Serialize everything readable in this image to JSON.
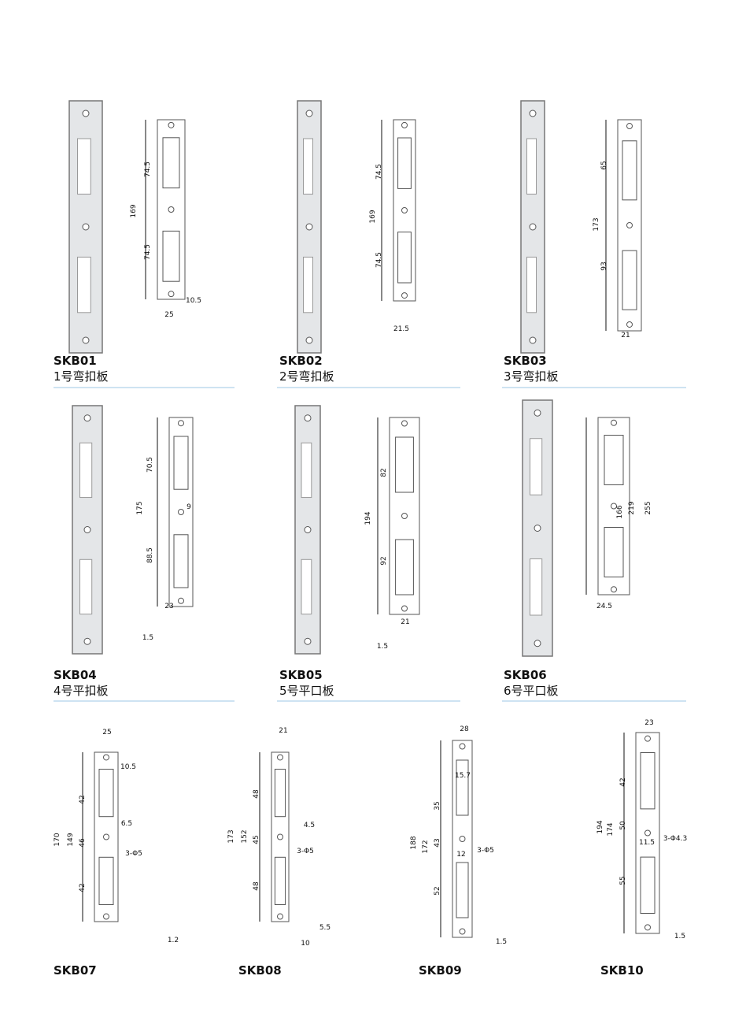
{
  "products": [
    {
      "code": "SKB01",
      "name": "1号弯扣板",
      "dims": [
        "74.5",
        "169",
        "74.5",
        "10.5",
        "25"
      ]
    },
    {
      "code": "SKB02",
      "name": "2号弯扣板",
      "dims": [
        "74.5",
        "169",
        "74.5",
        "21.5"
      ]
    },
    {
      "code": "SKB03",
      "name": "3号弯扣板",
      "dims": [
        "65",
        "173",
        "93",
        "21"
      ]
    },
    {
      "code": "SKB04",
      "name": "4号平扣板",
      "dims": [
        "70.5",
        "175",
        "9",
        "88.5",
        "23",
        "1.5"
      ]
    },
    {
      "code": "SKB05",
      "name": "5号平口板",
      "dims": [
        "82",
        "194",
        "92",
        "21",
        "1.5"
      ]
    },
    {
      "code": "SKB06",
      "name": "6号平口板",
      "dims": [
        "166",
        "219",
        "255",
        "24.5"
      ]
    },
    {
      "code": "SKB07",
      "dims": [
        "25",
        "10.5",
        "42",
        "149",
        "170",
        "6.5",
        "46",
        "3-Φ5",
        "42",
        "1.2"
      ]
    },
    {
      "code": "SKB08",
      "dims": [
        "21",
        "173",
        "152",
        "48",
        "4.5",
        "45",
        "3-Φ5",
        "48",
        "5.5",
        "10"
      ]
    },
    {
      "code": "SKB09",
      "dims": [
        "28",
        "15.7",
        "188",
        "172",
        "35",
        "43",
        "3-Φ5",
        "52",
        "12",
        "1.5"
      ]
    },
    {
      "code": "SKB10",
      "dims": [
        "23",
        "194",
        "174",
        "42",
        "50",
        "3-Φ4.3",
        "11.5",
        "55",
        "1.5"
      ]
    }
  ]
}
